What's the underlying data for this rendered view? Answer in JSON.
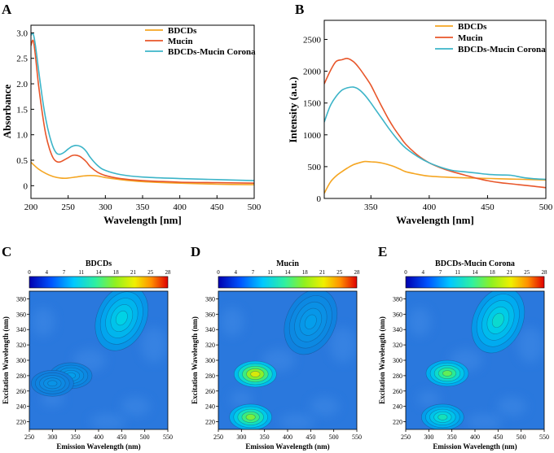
{
  "figure": {
    "panel_labels": [
      "A",
      "B",
      "C",
      "D",
      "E"
    ]
  },
  "colors": {
    "BDCDs": "#f5a623",
    "Mucin": "#e8562a",
    "Corona": "#3cb4c8",
    "map_base": "#1572d8",
    "map_bg": "#2a78dd"
  },
  "chart_data": [
    {
      "panel": "A",
      "type": "line",
      "title": "",
      "xlabel": "Wavelength [nm]",
      "ylabel": "Absorbance",
      "xlim": [
        200,
        500
      ],
      "ylim": [
        -0.25,
        3.15
      ],
      "xticks": [
        "200",
        "250",
        "300",
        "350",
        "400",
        "450",
        "500"
      ],
      "xtick_values": [
        200,
        250,
        300,
        350,
        400,
        450,
        500
      ],
      "yticks": [
        "0",
        "0.5",
        "1.0",
        "1.5",
        "2.0",
        "2.5",
        "3.0"
      ],
      "ytick_values": [
        0,
        0.5,
        1.0,
        1.5,
        2.0,
        2.5,
        3.0
      ],
      "legend_position": "top-right",
      "series": [
        {
          "name": "BDCDs",
          "color_key": "BDCDs",
          "x": [
            200,
            210,
            220,
            230,
            240,
            250,
            260,
            270,
            280,
            290,
            300,
            320,
            350,
            400,
            450,
            500
          ],
          "y": [
            0.46,
            0.33,
            0.24,
            0.18,
            0.15,
            0.15,
            0.17,
            0.19,
            0.2,
            0.19,
            0.16,
            0.12,
            0.08,
            0.05,
            0.03,
            0.02
          ]
        },
        {
          "name": "Mucin",
          "color_key": "Mucin",
          "x": [
            200,
            203,
            206,
            210,
            215,
            220,
            225,
            230,
            235,
            240,
            250,
            255,
            260,
            265,
            270,
            275,
            280,
            290,
            300,
            320,
            350,
            400,
            450,
            500
          ],
          "y": [
            2.75,
            2.85,
            2.55,
            2.0,
            1.45,
            1.0,
            0.72,
            0.54,
            0.47,
            0.47,
            0.55,
            0.59,
            0.6,
            0.58,
            0.53,
            0.46,
            0.37,
            0.26,
            0.2,
            0.14,
            0.1,
            0.07,
            0.06,
            0.05
          ]
        },
        {
          "name": "BDCDs-Mucin Corona",
          "color_key": "Corona",
          "x": [
            200,
            203,
            206,
            210,
            215,
            220,
            225,
            230,
            235,
            240,
            245,
            250,
            255,
            260,
            265,
            270,
            275,
            280,
            290,
            300,
            320,
            350,
            400,
            450,
            500
          ],
          "y": [
            2.95,
            2.98,
            2.75,
            2.3,
            1.75,
            1.3,
            0.98,
            0.75,
            0.63,
            0.62,
            0.66,
            0.72,
            0.77,
            0.79,
            0.78,
            0.74,
            0.66,
            0.55,
            0.39,
            0.3,
            0.22,
            0.17,
            0.14,
            0.12,
            0.1
          ]
        }
      ]
    },
    {
      "panel": "B",
      "type": "line",
      "title": "",
      "xlabel": "Wavelength [nm]",
      "ylabel": "Intensity (a.u.)",
      "xlim": [
        310,
        500
      ],
      "ylim": [
        0,
        2800
      ],
      "xticks": [
        "350",
        "400",
        "450",
        "500"
      ],
      "xtick_values": [
        350,
        400,
        450,
        500
      ],
      "yticks": [
        "0",
        "500",
        "1000",
        "1500",
        "2000",
        "2500"
      ],
      "ytick_values": [
        0,
        500,
        1000,
        1500,
        2000,
        2500
      ],
      "legend_position": "top-right",
      "series": [
        {
          "name": "BDCDs",
          "color_key": "BDCDs",
          "x": [
            310,
            315,
            320,
            325,
            330,
            335,
            340,
            345,
            350,
            355,
            360,
            365,
            370,
            375,
            380,
            390,
            400,
            420,
            440,
            460,
            480,
            500
          ],
          "y": [
            80,
            250,
            350,
            420,
            480,
            530,
            560,
            580,
            575,
            570,
            555,
            530,
            500,
            460,
            420,
            380,
            350,
            330,
            320,
            310,
            300,
            290
          ]
        },
        {
          "name": "Mucin",
          "color_key": "Mucin",
          "x": [
            310,
            315,
            320,
            325,
            330,
            335,
            340,
            345,
            350,
            355,
            360,
            365,
            370,
            375,
            380,
            390,
            400,
            410,
            420,
            430,
            440,
            450,
            460,
            470,
            480,
            490,
            500
          ],
          "y": [
            1800,
            2000,
            2150,
            2180,
            2200,
            2150,
            2050,
            1920,
            1780,
            1600,
            1420,
            1250,
            1100,
            970,
            850,
            680,
            560,
            480,
            420,
            370,
            320,
            280,
            250,
            230,
            210,
            190,
            170
          ]
        },
        {
          "name": "BDCDs-Mucin Corona",
          "color_key": "Corona",
          "x": [
            310,
            315,
            320,
            325,
            330,
            335,
            340,
            345,
            350,
            355,
            360,
            365,
            370,
            375,
            380,
            390,
            400,
            410,
            420,
            430,
            440,
            450,
            460,
            470,
            480,
            490,
            500
          ],
          "y": [
            1200,
            1450,
            1600,
            1700,
            1740,
            1750,
            1710,
            1620,
            1500,
            1370,
            1240,
            1110,
            990,
            880,
            790,
            660,
            560,
            490,
            440,
            420,
            400,
            380,
            370,
            365,
            330,
            310,
            300
          ]
        }
      ]
    },
    {
      "panel": "C",
      "type": "heatmap",
      "title": "BDCDs",
      "xlabel": "Emission Wavelength (nm)",
      "ylabel": "Excitation Wavelength (nm)",
      "xlim": [
        250,
        550
      ],
      "ylim": [
        210,
        390
      ],
      "xticks": [
        "250",
        "300",
        "350",
        "400",
        "450",
        "500",
        "550"
      ],
      "xtick_values": [
        250,
        300,
        350,
        400,
        450,
        500,
        550
      ],
      "yticks": [
        "220",
        "240",
        "260",
        "280",
        "300",
        "320",
        "340",
        "360",
        "380"
      ],
      "ytick_values": [
        220,
        240,
        260,
        280,
        300,
        320,
        340,
        360,
        380
      ],
      "colorbar_ticks": [
        "0",
        "4",
        "7",
        "11",
        "14",
        "18",
        "21",
        "25",
        "28"
      ],
      "colorbar_range": [
        0,
        28
      ],
      "peaks": [
        {
          "em": 450,
          "ex": 355,
          "intensity": 9
        },
        {
          "em": 340,
          "ex": 280,
          "intensity": 4
        },
        {
          "em": 300,
          "ex": 270,
          "intensity": 3
        }
      ]
    },
    {
      "panel": "D",
      "type": "heatmap",
      "title": "Mucin",
      "xlabel": "Emission Wavelength (nm)",
      "ylabel": "Excitation Wavelength (nm)",
      "xlim": [
        250,
        550
      ],
      "ylim": [
        210,
        390
      ],
      "xticks": [
        "250",
        "300",
        "350",
        "400",
        "450",
        "500",
        "550"
      ],
      "xtick_values": [
        250,
        300,
        350,
        400,
        450,
        500,
        550
      ],
      "yticks": [
        "220",
        "240",
        "260",
        "280",
        "300",
        "320",
        "340",
        "360",
        "380"
      ],
      "ytick_values": [
        220,
        240,
        260,
        280,
        300,
        320,
        340,
        360,
        380
      ],
      "colorbar_ticks": [
        "0",
        "4",
        "7",
        "11",
        "14",
        "18",
        "21",
        "25",
        "28"
      ],
      "colorbar_range": [
        0,
        28
      ],
      "peaks": [
        {
          "em": 330,
          "ex": 282,
          "intensity": 20
        },
        {
          "em": 320,
          "ex": 226,
          "intensity": 16
        },
        {
          "em": 450,
          "ex": 350,
          "intensity": 4
        }
      ]
    },
    {
      "panel": "E",
      "type": "heatmap",
      "title": "BDCDs-Mucin Corona",
      "xlabel": "Emission Wavelength (nm)",
      "ylabel": "Excitation Wavelength (nm)",
      "xlim": [
        250,
        550
      ],
      "ylim": [
        210,
        390
      ],
      "xticks": [
        "250",
        "300",
        "350",
        "400",
        "450",
        "500",
        "550"
      ],
      "xtick_values": [
        250,
        300,
        350,
        400,
        450,
        500,
        550
      ],
      "yticks": [
        "220",
        "240",
        "260",
        "280",
        "300",
        "320",
        "340",
        "360",
        "380"
      ],
      "ytick_values": [
        220,
        240,
        260,
        280,
        300,
        320,
        340,
        360,
        380
      ],
      "colorbar_ticks": [
        "0",
        "4",
        "7",
        "11",
        "14",
        "18",
        "21",
        "25",
        "28"
      ],
      "colorbar_range": [
        0,
        28
      ],
      "peaks": [
        {
          "em": 340,
          "ex": 283,
          "intensity": 15
        },
        {
          "em": 330,
          "ex": 226,
          "intensity": 11
        },
        {
          "em": 450,
          "ex": 352,
          "intensity": 10
        }
      ]
    }
  ]
}
